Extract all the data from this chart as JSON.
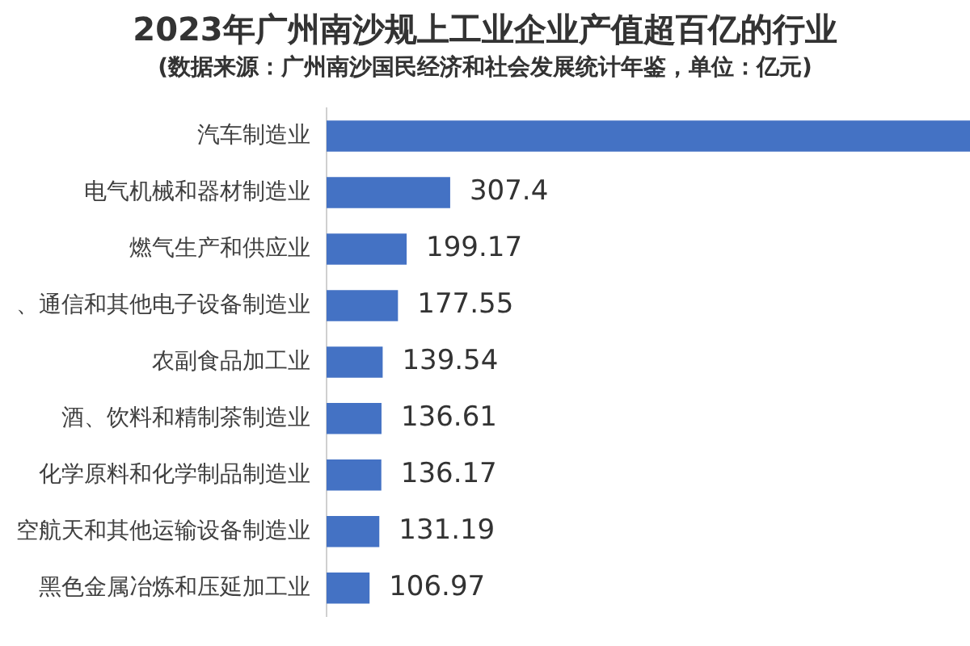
{
  "chart_data": {
    "type": "bar",
    "orientation": "horizontal",
    "title": "2023年广州南沙规上工业企业产值超百亿的行业",
    "subtitle": "(数据来源：广州南沙国民经济和社会发展统计年鉴，单位：亿元)",
    "categories": [
      "汽车制造业",
      "电气机械和器材制造业",
      "燃气生产和供应业",
      "、通信和其他电子设备制造业",
      "农副食品加工业",
      "酒、饮料和精制茶制造业",
      "化学原料和化学制品制造业",
      "空航天和其他运输设备制造业",
      "黑色金属冶炼和压延加工业"
    ],
    "values": [
      1600,
      307.4,
      199.17,
      177.55,
      139.54,
      136.61,
      136.17,
      131.19,
      106.97
    ],
    "value_labels": [
      null,
      "307.4",
      "199.17",
      "177.55",
      "139.54",
      "136.61",
      "136.17",
      "131.19",
      "106.97"
    ],
    "color": "#4472c4",
    "grid": false,
    "legend": false,
    "tick_labels": "y"
  }
}
